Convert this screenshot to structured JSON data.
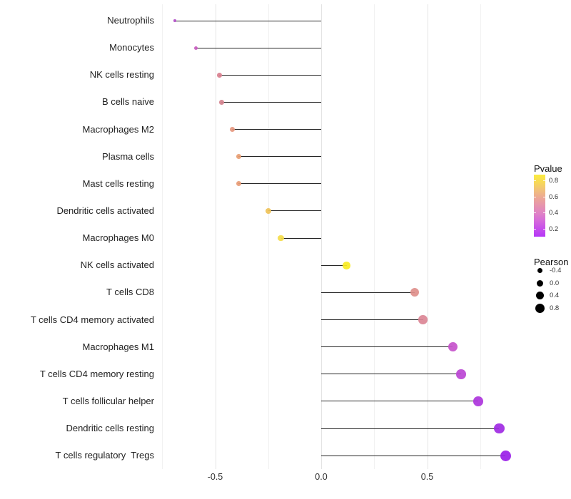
{
  "chart_data": {
    "type": "scatter",
    "variant": "lollipop",
    "title": "",
    "xlabel": "",
    "ylabel": "",
    "xlim": [
      -0.77,
      0.95
    ],
    "legend_position": "right",
    "grid": {
      "x_major": [
        -0.5,
        0,
        0.5
      ],
      "x_minor": [
        -0.75,
        -0.25,
        0.25,
        0.75
      ],
      "horizontal": "none"
    },
    "x_ticks": [
      {
        "value": -0.5,
        "label": "-0.5"
      },
      {
        "value": 0,
        "label": "0.0"
      },
      {
        "value": 0.5,
        "label": "0.5"
      }
    ],
    "points": [
      {
        "label": "Neutrophils",
        "pearson": -0.69,
        "pvalue": 0.15,
        "color": "#B14DC7",
        "radius_px": 1.7
      },
      {
        "label": "Monocytes",
        "pearson": -0.59,
        "pvalue": 0.28,
        "color": "#C65ABE",
        "radius_px": 2.6
      },
      {
        "label": "NK cells resting",
        "pearson": -0.48,
        "pvalue": 0.45,
        "color": "#D9808F",
        "radius_px": 3.3
      },
      {
        "label": "B cells naive",
        "pearson": -0.47,
        "pvalue": 0.45,
        "color": "#D5838F",
        "radius_px": 3.3
      },
      {
        "label": "Macrophages M2",
        "pearson": -0.42,
        "pvalue": 0.55,
        "color": "#E5977F",
        "radius_px": 3.6
      },
      {
        "label": "Plasma cells",
        "pearson": -0.39,
        "pvalue": 0.6,
        "color": "#E89E73",
        "radius_px": 3.4
      },
      {
        "label": "Mast cells resting",
        "pearson": -0.39,
        "pvalue": 0.6,
        "color": "#E89C76",
        "radius_px": 3.5
      },
      {
        "label": "Dendritic cells activated",
        "pearson": -0.25,
        "pvalue": 0.7,
        "color": "#EFC257",
        "radius_px": 4.0
      },
      {
        "label": "Macrophages M0",
        "pearson": -0.19,
        "pvalue": 0.76,
        "color": "#F4DC49",
        "radius_px": 4.2
      },
      {
        "label": "NK cells activated",
        "pearson": 0.12,
        "pvalue": 0.85,
        "color": "#F8EC23",
        "radius_px": 5.3
      },
      {
        "label": "T cells CD8",
        "pearson": 0.44,
        "pvalue": 0.47,
        "color": "#DE8F8B",
        "radius_px": 6.0
      },
      {
        "label": "T cells CD4 memory activated",
        "pearson": 0.48,
        "pvalue": 0.44,
        "color": "#DB8695",
        "radius_px": 6.2
      },
      {
        "label": "Macrophages M1",
        "pearson": 0.62,
        "pvalue": 0.26,
        "color": "#C553CB",
        "radius_px": 6.6
      },
      {
        "label": "T cells CD4 memory resting",
        "pearson": 0.66,
        "pvalue": 0.21,
        "color": "#BB45D4",
        "radius_px": 6.7
      },
      {
        "label": "T cells follicular helper",
        "pearson": 0.74,
        "pvalue": 0.16,
        "color": "#AC35DC",
        "radius_px": 6.8
      },
      {
        "label": "Dendritic cells resting",
        "pearson": 0.84,
        "pvalue": 0.11,
        "color": "#A02AE3",
        "radius_px": 7.3
      },
      {
        "label": "T cells regulatory  Tregs",
        "pearson": 0.87,
        "pvalue": 0.08,
        "color": "#9A20E8",
        "radius_px": 7.6
      }
    ],
    "legends": {
      "pvalue": {
        "title": "Pvalue",
        "bar_value_top": 0.87,
        "bar_value_bottom": 0.1,
        "ticks": [
          {
            "value": 0.8,
            "label": "0.8"
          },
          {
            "value": 0.6,
            "label": "0.6"
          },
          {
            "value": 0.4,
            "label": "0.4"
          },
          {
            "value": 0.2,
            "label": "0.2"
          }
        ],
        "gradient_top_to_bottom": [
          "#FAEB3F",
          "#F7D958",
          "#F1C07B",
          "#ECA796",
          "#E694AE",
          "#DF82C6",
          "#D569DB",
          "#C64EEC",
          "#B538F6"
        ]
      },
      "pearson": {
        "title": "Pearson",
        "dot_color": "#000000",
        "entries": [
          {
            "label": "-0.4",
            "radius_px": 3.5
          },
          {
            "label": "0.0",
            "radius_px": 4.5
          },
          {
            "label": "0.4",
            "radius_px": 5.5
          },
          {
            "label": "0.8",
            "radius_px": 6.5
          }
        ]
      }
    },
    "colors": {
      "stem": "#262626",
      "grid_major": "#e4e4e4",
      "grid_minor": "#f1f1f1",
      "background": "#ffffff"
    }
  }
}
